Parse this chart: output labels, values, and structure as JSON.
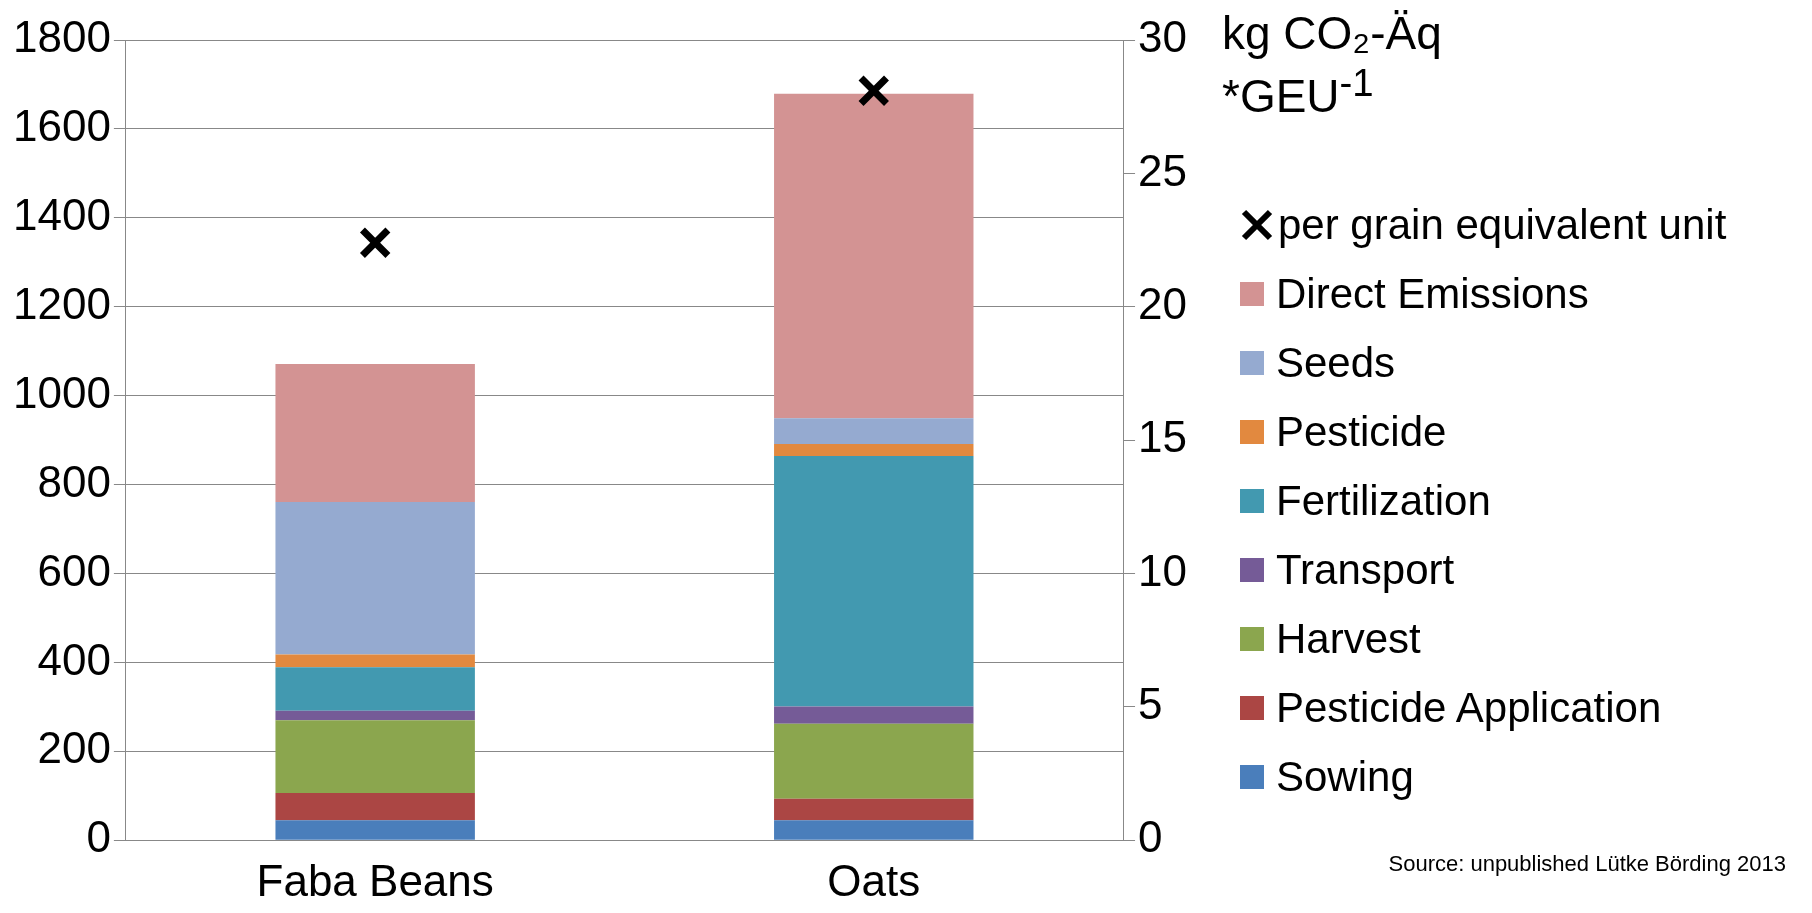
{
  "chart_data": {
    "type": "bar",
    "stacked": true,
    "categories": [
      "Faba Beans",
      "Oats"
    ],
    "series": [
      {
        "name": "Sowing",
        "color": "#4a7ebb",
        "values": [
          45,
          45
        ]
      },
      {
        "name": "Pesticide Application",
        "color": "#ab4644",
        "values": [
          61,
          48
        ]
      },
      {
        "name": "Harvest",
        "color": "#8ba64e",
        "values": [
          164,
          169
        ]
      },
      {
        "name": "Transport",
        "color": "#755b97",
        "values": [
          21,
          39
        ]
      },
      {
        "name": "Fertilization",
        "color": "#4299b0",
        "values": [
          98,
          563
        ]
      },
      {
        "name": "Pesticide",
        "color": "#e2893f",
        "values": [
          29,
          27
        ]
      },
      {
        "name": "Seeds",
        "color": "#95aad0",
        "values": [
          343,
          58
        ]
      },
      {
        "name": "Direct Emissions",
        "color": "#d39393",
        "values": [
          310,
          730
        ]
      },
      {
        "name": "per grain equivalent unit",
        "type": "scatter",
        "axis": "y2",
        "marker": "cross",
        "color": "#000000",
        "x": [
          "Faba Beans",
          "Oats"
        ],
        "values": [
          22.4,
          28.1
        ]
      }
    ],
    "ylim": [
      0,
      1800
    ],
    "yticks": [
      0,
      200,
      400,
      600,
      800,
      1000,
      1200,
      1400,
      1600,
      1800
    ],
    "y2lim": [
      0,
      30
    ],
    "y2ticks": [
      0,
      5,
      10,
      15,
      20,
      25,
      30
    ],
    "y2label": "kg CO₂-Äq *GEU$^{-1}$",
    "grid": "y",
    "legend": "right",
    "annotations": [
      "Source: unpublished Lütke Börding 2013"
    ]
  }
}
